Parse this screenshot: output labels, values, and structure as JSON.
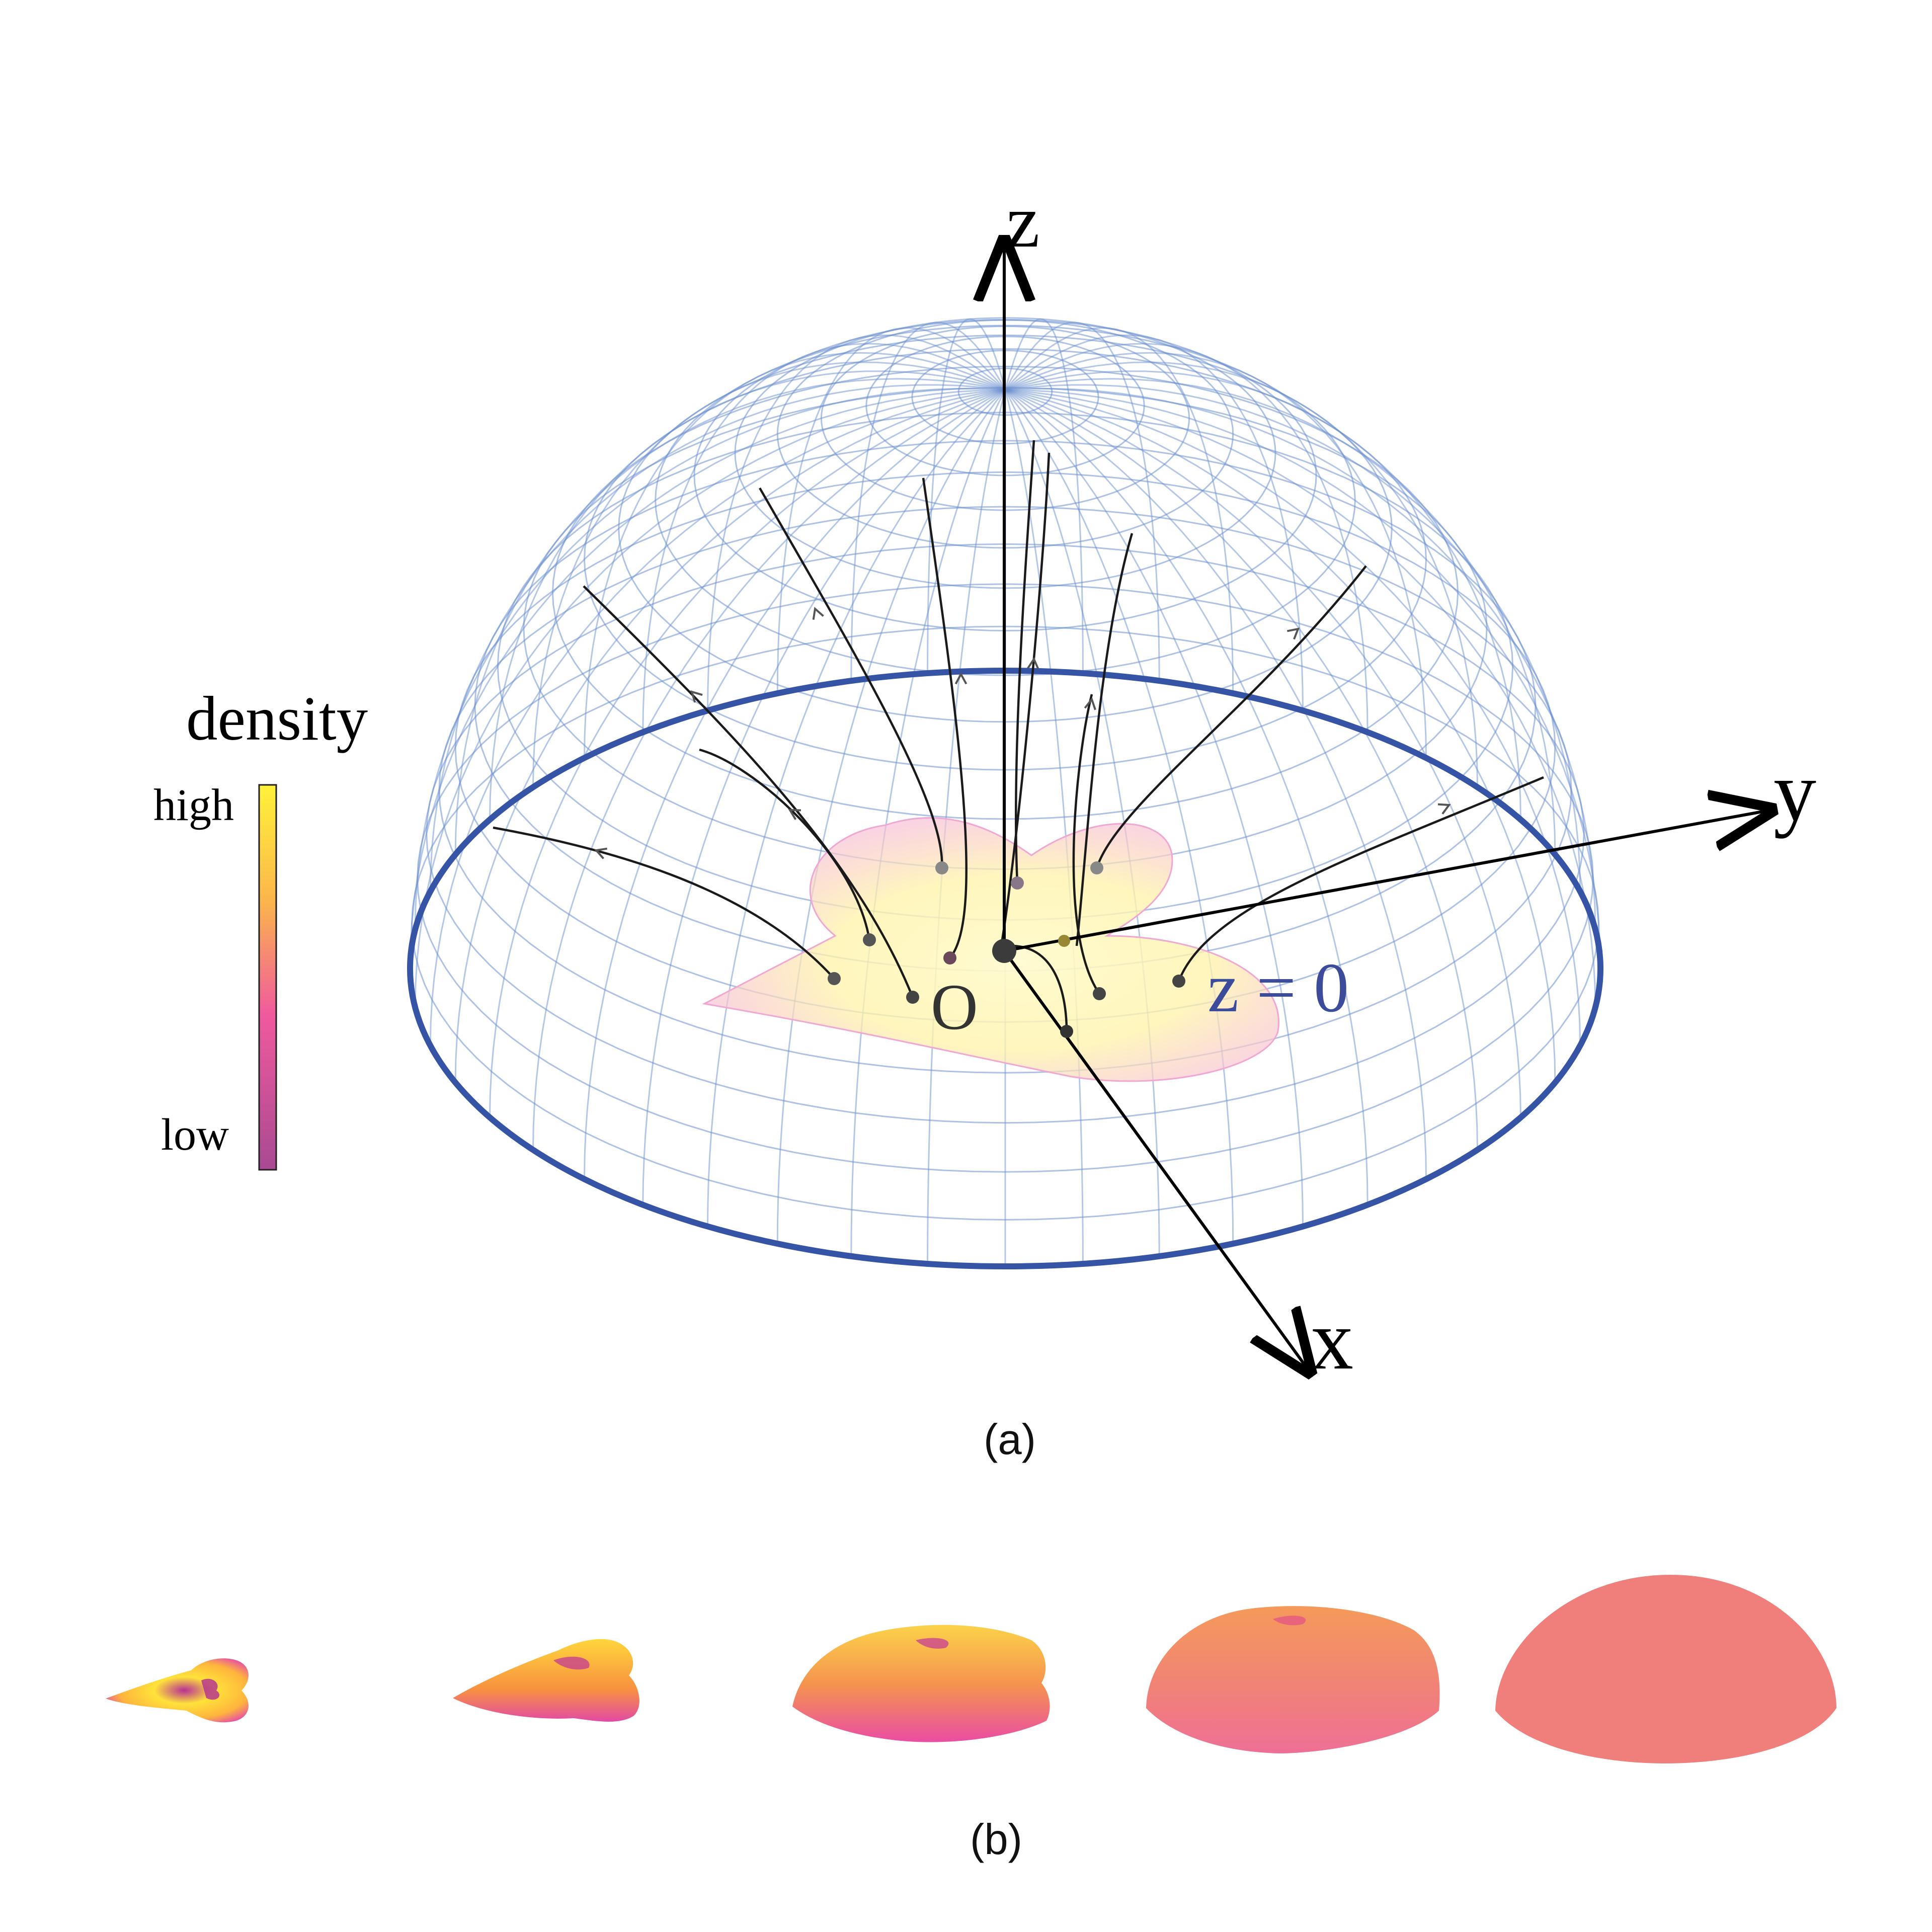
{
  "panel_a": {
    "caption": "(a)",
    "axis_labels": {
      "x": "x",
      "y": "y",
      "z": "z"
    },
    "origin_label": "O",
    "plane_label": "z = 0",
    "colorbar": {
      "title": "density",
      "high_label": "high",
      "low_label": "low"
    }
  },
  "panel_b": {
    "caption": "(b)"
  },
  "colors": {
    "hemisphere_wire": "#6b8fd0",
    "hemisphere_rim": "#3654a6",
    "plane_label": "#3d4b9b",
    "axis": "#000000",
    "density_high": "#ffee33",
    "density_mid": "#f79a4c",
    "density_low": "#c7418f",
    "final_state": "#f07f7c"
  }
}
